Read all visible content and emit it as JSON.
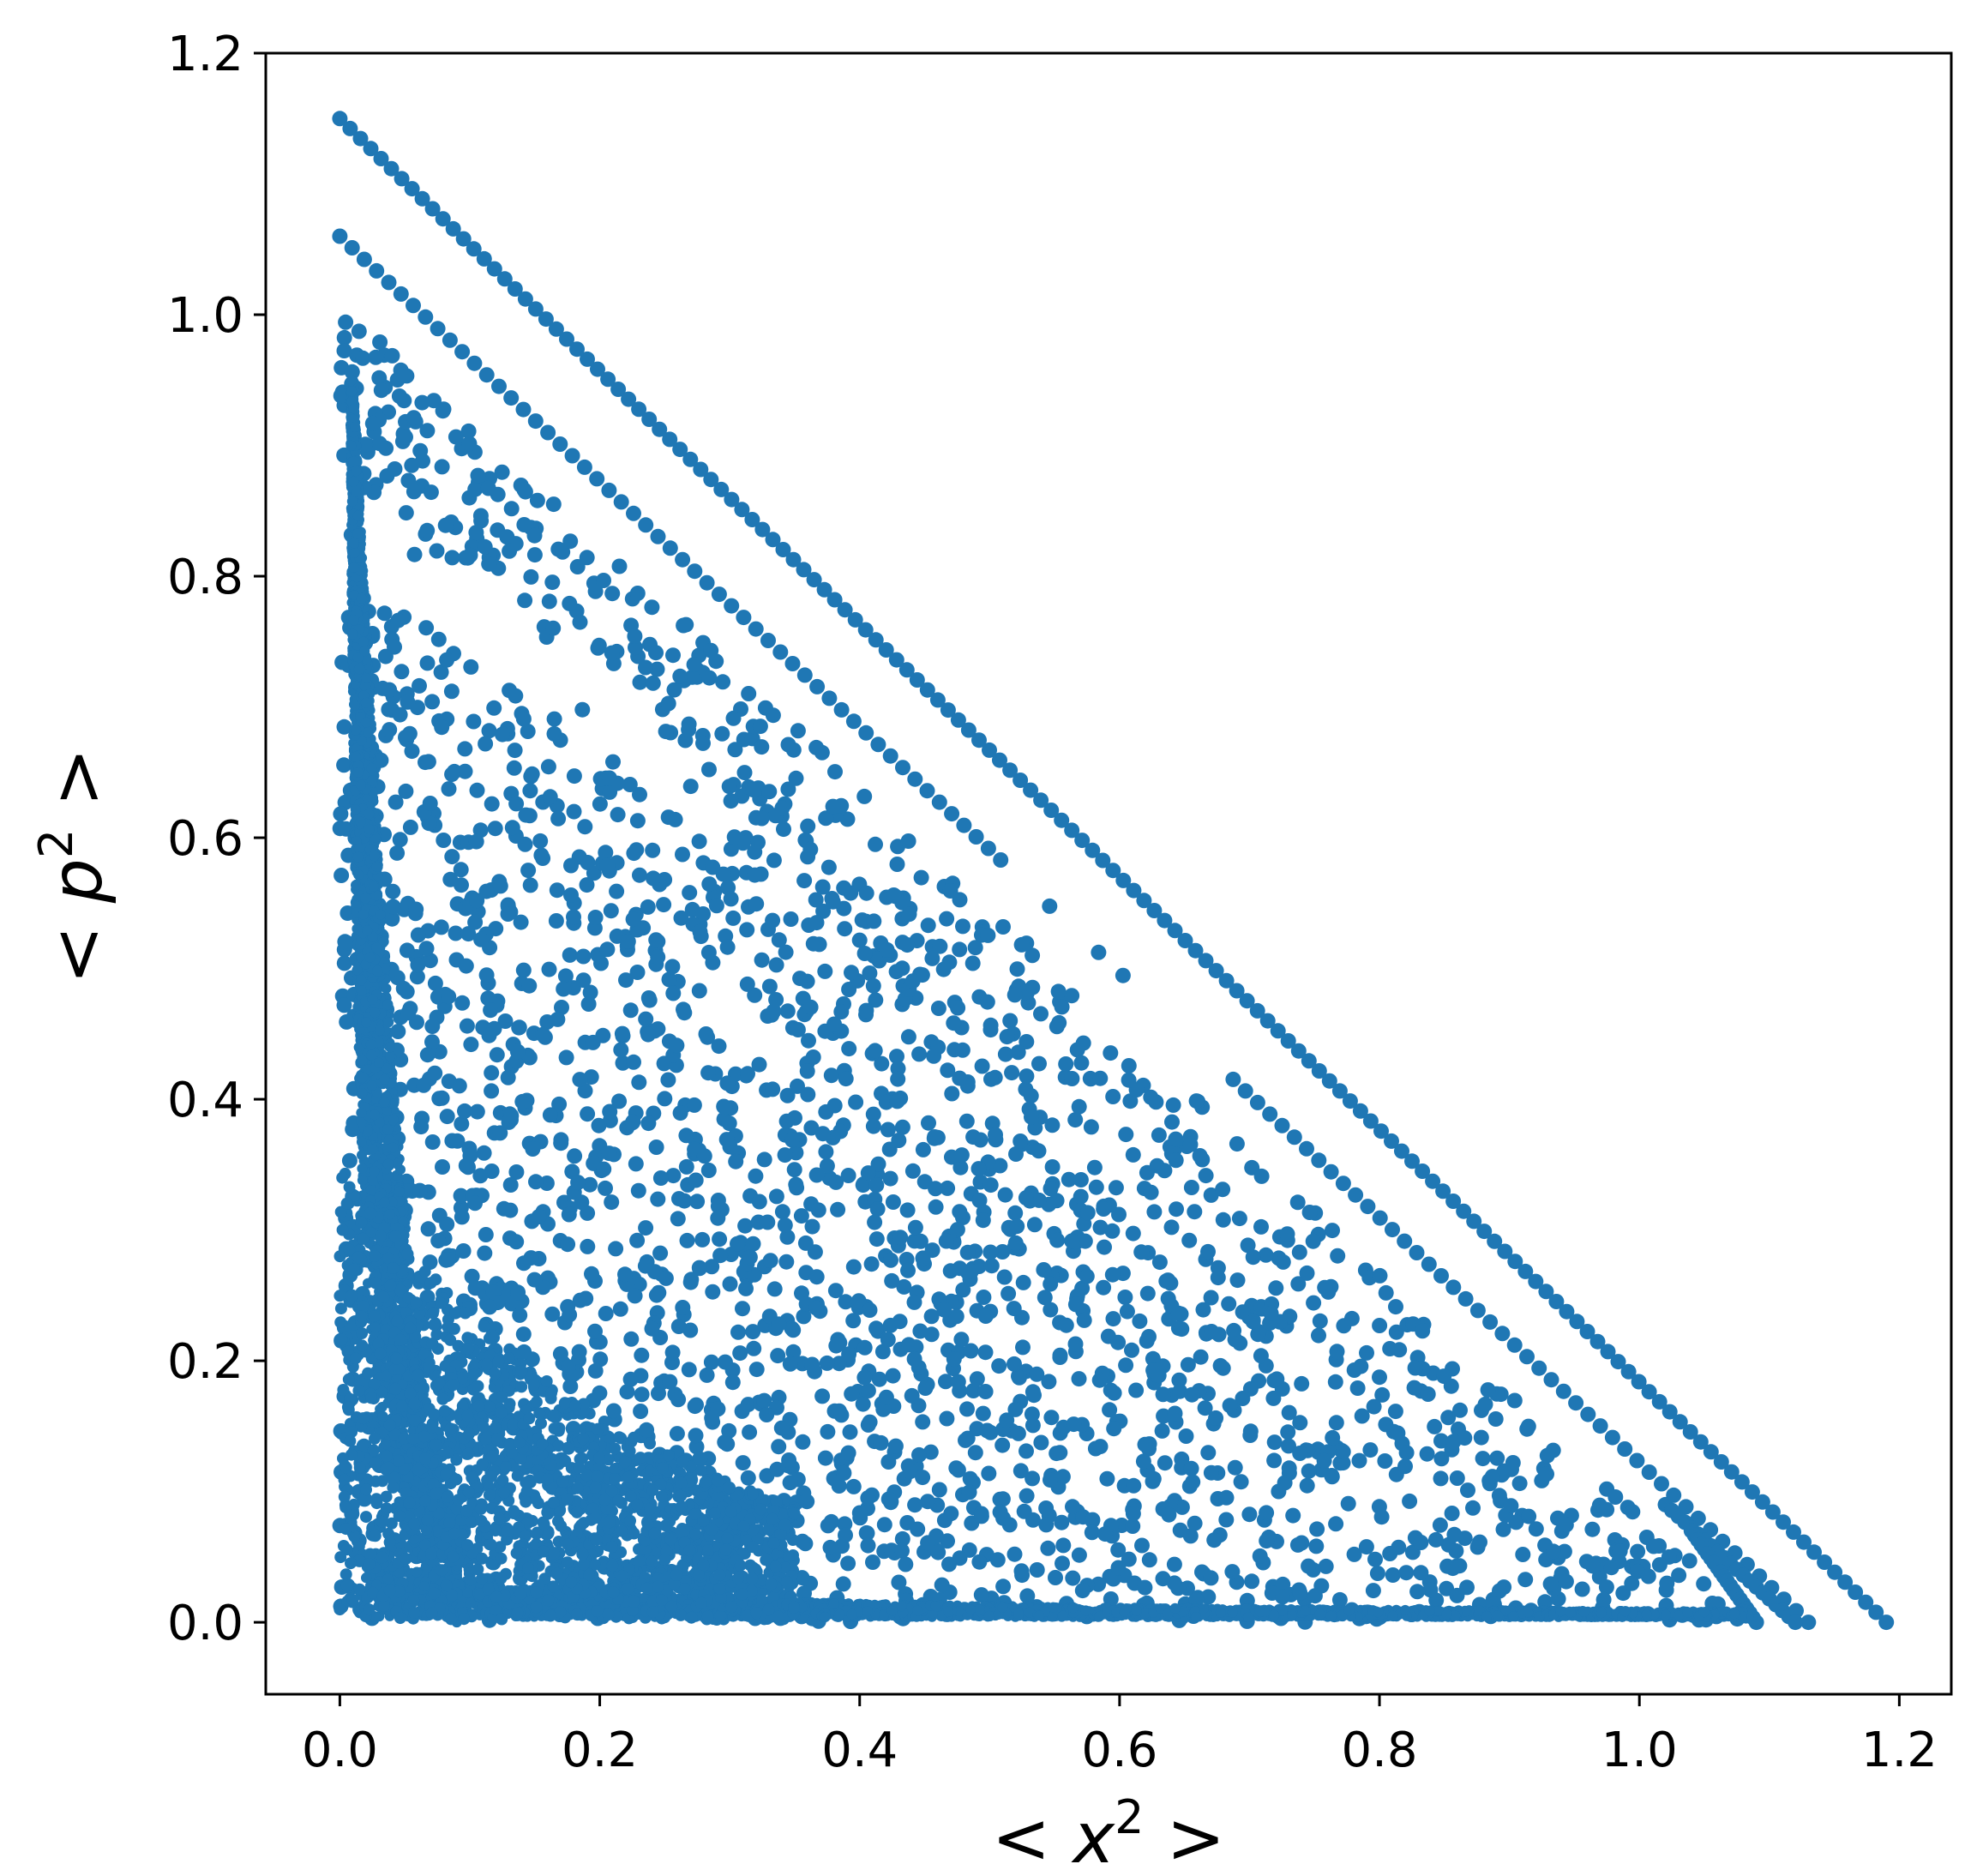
{
  "chart_data": {
    "type": "scatter",
    "title": "",
    "xlabel": {
      "prefix": "< ",
      "var": "x",
      "sup": "2",
      "suffix": " >"
    },
    "ylabel": {
      "prefix": "< ",
      "var": "p",
      "sup": "2",
      "suffix": " >"
    },
    "xlim": [
      -0.057,
      1.24
    ],
    "ylim": [
      -0.055,
      1.2
    ],
    "xticks": [
      0.0,
      0.2,
      0.4,
      0.6,
      0.8,
      1.0,
      1.2
    ],
    "yticks": [
      0.0,
      0.2,
      0.4,
      0.6,
      0.8,
      1.0,
      1.2
    ],
    "xtick_labels": [
      "0.0",
      "0.2",
      "0.4",
      "0.6",
      "0.8",
      "1.0",
      "1.2"
    ],
    "ytick_labels": [
      "0.0",
      "0.2",
      "0.4",
      "0.6",
      "0.8",
      "1.0",
      "1.2"
    ],
    "grid": false,
    "legend": "none",
    "marker_color": "#1f77b4",
    "series": [
      {
        "description_of_structure": null,
        "lines": [
          {
            "x_start": 0.0,
            "y_start": 1.15,
            "x_end": 1.19,
            "y_end": 0.0
          },
          {
            "x_start": 0.0,
            "y_start": 1.06,
            "x_end": 1.13,
            "y_end": 0.0
          },
          {
            "x_start": 1.02,
            "y_start": 0.09,
            "x_end": 1.12,
            "y_end": 0.0
          },
          {
            "x_start": 1.04,
            "y_start": 0.07,
            "x_end": 1.09,
            "y_end": 0.0
          }
        ],
        "region_outer": {
          "x_max_at_y0": 1.09,
          "y_max_at_x0": 1.01
        },
        "region_inner_gap": {
          "upper_band_x0": [
            0.88,
            1.01
          ],
          "lower_triangle_top": 0.81
        }
      }
    ]
  }
}
